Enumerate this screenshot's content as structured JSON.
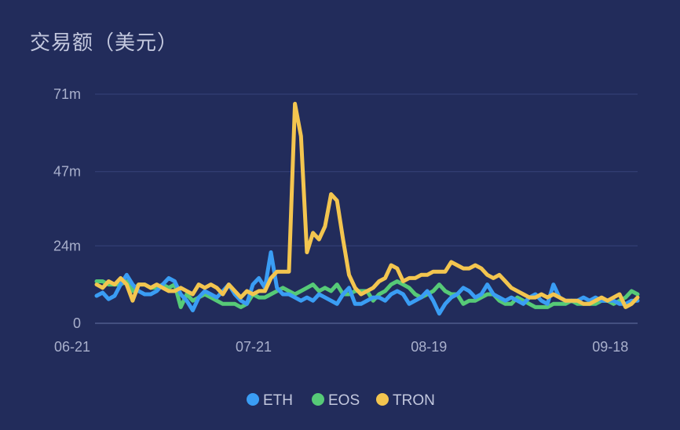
{
  "chart_data": {
    "type": "line",
    "title": "交易额（美元）",
    "y_ticks": [
      {
        "label": "0",
        "value": 0
      },
      {
        "label": "24m",
        "value": 24
      },
      {
        "label": "47m",
        "value": 47
      },
      {
        "label": "71m",
        "value": 71
      }
    ],
    "ylim": [
      0,
      71
    ],
    "x_ticks": [
      {
        "label": "06-21",
        "index": 0
      },
      {
        "label": "07-21",
        "index": 30
      },
      {
        "label": "08-19",
        "index": 59
      },
      {
        "label": "09-18",
        "index": 89
      }
    ],
    "x_count": 91,
    "grid": true,
    "legend_position": "bottom",
    "series": [
      {
        "name": "ETH",
        "color": "#3a9df4",
        "values": [
          8.5,
          9.5,
          7.5,
          8.5,
          12,
          15,
          12,
          10,
          9,
          9,
          10,
          12,
          14,
          13,
          9,
          7,
          4,
          8,
          10,
          9,
          8,
          10,
          12,
          9,
          7,
          6,
          12,
          14,
          11,
          22,
          11,
          9,
          9,
          8,
          7,
          8,
          7,
          9,
          8,
          7,
          6,
          9,
          11,
          6,
          6,
          7,
          8,
          8,
          7,
          9,
          10,
          9,
          6,
          7,
          8,
          10,
          7,
          3,
          6,
          8,
          9,
          11,
          10,
          8,
          9,
          12,
          9,
          8,
          7,
          8,
          7,
          6,
          8,
          9,
          7,
          6,
          12,
          8,
          7,
          7,
          7,
          8,
          7,
          8,
          7,
          7,
          7,
          6,
          6,
          7,
          7
        ]
      },
      {
        "name": "EOS",
        "color": "#56ca77",
        "values": [
          13,
          13,
          12,
          12,
          12,
          13,
          10,
          12,
          12,
          11,
          11,
          12,
          11,
          12,
          5,
          9,
          7,
          8,
          9,
          8,
          7,
          6,
          6,
          6,
          5,
          6,
          9,
          8,
          8,
          9,
          10,
          11,
          10,
          9,
          10,
          11,
          12,
          10,
          11,
          10,
          12,
          9,
          9,
          10,
          10,
          10,
          7,
          9,
          10,
          12,
          13,
          12,
          11,
          9,
          8,
          9,
          10,
          12,
          10,
          9,
          9,
          6,
          7,
          7,
          8,
          9,
          9,
          7,
          6,
          6,
          8,
          7,
          6,
          5,
          5,
          5,
          6,
          6,
          6,
          7,
          6,
          6,
          6,
          6,
          7,
          7,
          6,
          7,
          8,
          10,
          9
        ]
      },
      {
        "name": "TRON",
        "color": "#f3c54f",
        "values": [
          12,
          11,
          13,
          12,
          14,
          12,
          7,
          12,
          12,
          11,
          12,
          11,
          10,
          10,
          11,
          10,
          9,
          12,
          11,
          12,
          11,
          9,
          12,
          10,
          8,
          10,
          9,
          10,
          10,
          14,
          16,
          16,
          16,
          68,
          58,
          22,
          28,
          26,
          30,
          40,
          38,
          26,
          15,
          11,
          9,
          10,
          11,
          13,
          14,
          18,
          17,
          13,
          14,
          14,
          15,
          15,
          16,
          16,
          16,
          19,
          18,
          17,
          17,
          18,
          17,
          15,
          14,
          15,
          13,
          11,
          10,
          9,
          8,
          8,
          9,
          8,
          9,
          8,
          7,
          7,
          7,
          6,
          6,
          7,
          8,
          7,
          8,
          9,
          5,
          6,
          8
        ]
      }
    ]
  }
}
